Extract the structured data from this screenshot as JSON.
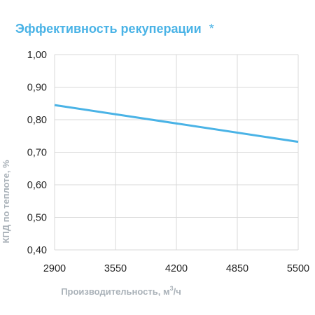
{
  "chart_data": {
    "type": "line",
    "title": "Эффективность рекуперации",
    "title_mark": "*",
    "xlabel_main": "Производительность, м",
    "xlabel_sup": "3",
    "xlabel_tail": "/ч",
    "ylabel": "КПД по теплоте, %",
    "x_ticks": [
      "2900",
      "3550",
      "4200",
      "4850",
      "5500"
    ],
    "y_ticks": [
      "0,40",
      "0,50",
      "0,60",
      "0,70",
      "0,80",
      "0,90",
      "1,00"
    ],
    "xlim": [
      2900,
      5500
    ],
    "ylim": [
      0.4,
      1.0
    ],
    "grid": true,
    "series": [
      {
        "x": [
          2900,
          5500
        ],
        "y": [
          0.845,
          0.732
        ]
      }
    ],
    "colors": {
      "title": "#4ab3e6",
      "line": "#4ab3e6",
      "grid": "#d9d9d9",
      "axis_label": "#a9b1b8"
    }
  }
}
